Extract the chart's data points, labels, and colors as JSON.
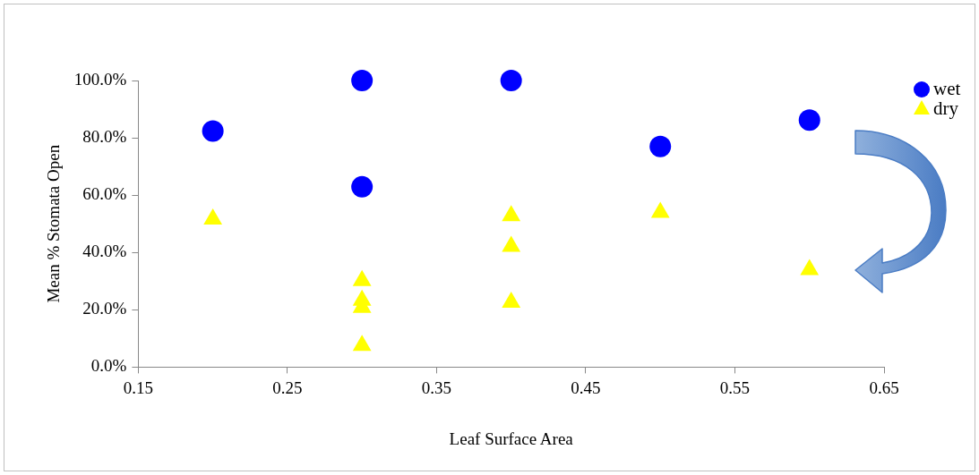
{
  "chart_data": {
    "type": "scatter",
    "xlabel": "Leaf Surface Area",
    "ylabel": "Mean % Stomata Open",
    "xlim": [
      0.15,
      0.65
    ],
    "xticks": [
      {
        "value": 0.15,
        "label": "0.15"
      },
      {
        "value": 0.25,
        "label": "0.25"
      },
      {
        "value": 0.35,
        "label": "0.35"
      },
      {
        "value": 0.45,
        "label": "0.45"
      },
      {
        "value": 0.55,
        "label": "0.55"
      },
      {
        "value": 0.65,
        "label": "0.65"
      }
    ],
    "ylim": [
      0,
      100
    ],
    "yticks": [
      {
        "value": 0,
        "label": "0.0%"
      },
      {
        "value": 20,
        "label": "20.0%"
      },
      {
        "value": 40,
        "label": "40.0%"
      },
      {
        "value": 60,
        "label": "60.0%"
      },
      {
        "value": 80,
        "label": "80.0%"
      },
      {
        "value": 100,
        "label": "100.0%"
      }
    ],
    "grid": false,
    "legend": "top right",
    "series": [
      {
        "name": "wet",
        "color": "#0000ff",
        "marker": "circle",
        "x": [
          0.2,
          0.3,
          0.3,
          0.4,
          0.5,
          0.6
        ],
        "values": [
          82.4,
          100,
          62.9,
          100,
          77,
          86.2
        ]
      },
      {
        "name": "dry",
        "color": "#ffff00",
        "marker": "triangle",
        "x": [
          0.2,
          0.3,
          0.3,
          0.3,
          0.3,
          0.4,
          0.4,
          0.4,
          0.5,
          0.6
        ],
        "values": [
          51.6,
          30.2,
          23.3,
          20.8,
          7.5,
          52.8,
          42.1,
          22.6,
          54,
          34
        ]
      }
    ]
  }
}
